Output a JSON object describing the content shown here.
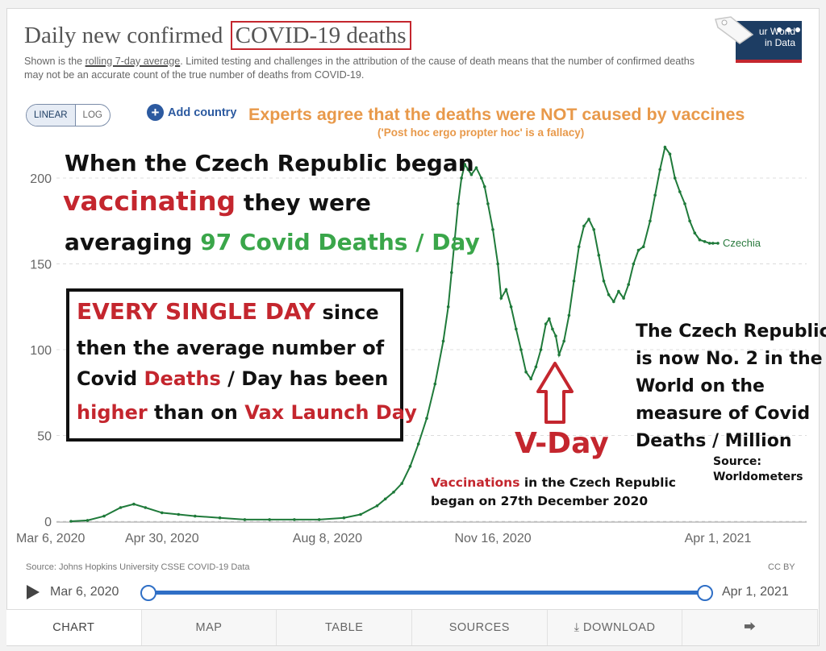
{
  "header": {
    "title_prefix": "Daily new confirmed ",
    "title_highlight": "COVID-19 deaths",
    "subtitle_pre": "Shown is the ",
    "subtitle_link": "rolling 7-day average",
    "subtitle_post": ". Limited testing and challenges in the attribution of the cause of death means that the number of confirmed deaths may not be an accurate count of the true number of deaths from COVID-19.",
    "logo_line1": "ur World",
    "logo_line2": "in Data"
  },
  "controls": {
    "linear_label": "LINEAR",
    "log_label": "LOG",
    "add_country_label": "Add country"
  },
  "annotations": {
    "experts": "Experts agree that the deaths were NOT caused by vaccines",
    "fallacy": "('Post hoc ergo propter hoc' is a fallacy)",
    "czech_l1": "When the Czech Republic began",
    "czech_l2a": "vaccinating",
    "czech_l2b": " they were",
    "czech_l3a": "averaging ",
    "czech_l3b": "97 Covid Deaths / Day",
    "box_l1a": "EVERY SINGLE DAY",
    "box_l1b": " since",
    "box_l2": "then the average number of",
    "box_l3a": "Covid ",
    "box_l3b": "Deaths",
    "box_l3c": " / Day has been",
    "box_l4a": "higher",
    "box_l4b": " than on ",
    "box_l4c": "Vax Launch Day",
    "vday": "V-Day",
    "rank_l1": "The Czech Republic",
    "rank_l2": "is now No. 2 in the",
    "rank_l3": "World on the",
    "rank_l4": "measure of Covid",
    "rank_l5": "Deaths / Million",
    "source_ann_l1": "Source:",
    "source_ann_l2": "Worldometers",
    "vacc_l1a": "Vaccinations",
    "vacc_l1b": " in the Czech Republic",
    "vacc_l2": "began on 27th December 2020"
  },
  "footer": {
    "source": "Source: Johns Hopkins University CSSE COVID-19 Data",
    "license": "CC BY",
    "timeline_start": "Mar 6, 2020",
    "timeline_end": "Apr 1, 2021"
  },
  "tabs": [
    "CHART",
    "MAP",
    "TABLE",
    "SOURCES",
    "DOWNLOAD",
    ""
  ],
  "colors": {
    "line": "#1f7a3a",
    "accent_red": "#c4262e",
    "accent_blue": "#2c5aa0",
    "orange": "#e8994a"
  },
  "chart_data": {
    "type": "line",
    "title": "Daily new confirmed COVID-19 deaths",
    "x_tick_labels": [
      "Mar 6, 2020",
      "Apr 30, 2020",
      "Aug 8, 2020",
      "Nov 16, 2020",
      "Apr 1, 2021"
    ],
    "x_tick_days": [
      0,
      55,
      155,
      255,
      391
    ],
    "y_ticks": [
      0,
      50,
      100,
      150,
      200
    ],
    "ylim": [
      0,
      215
    ],
    "xlim_days": [
      0,
      391
    ],
    "grid": "horizontal dashed",
    "series": [
      {
        "name": "Czechia",
        "x_days": [
          0,
          10,
          20,
          30,
          38,
          45,
          55,
          65,
          75,
          90,
          105,
          120,
          135,
          150,
          165,
          175,
          185,
          190,
          195,
          200,
          205,
          210,
          215,
          220,
          225,
          228,
          230,
          232,
          234,
          236,
          238,
          240,
          242,
          245,
          248,
          250,
          252,
          255,
          258,
          260,
          263,
          266,
          269,
          272,
          275,
          278,
          281,
          284,
          287,
          289,
          291,
          293,
          295,
          298,
          301,
          304,
          307,
          310,
          313,
          316,
          319,
          322,
          325,
          328,
          331,
          334,
          337,
          340,
          343,
          346,
          350,
          353,
          356,
          359,
          362,
          365,
          368,
          371,
          374,
          377,
          380,
          383,
          386,
          388,
          391
        ],
        "values": [
          0,
          0.5,
          3,
          8,
          10,
          8,
          5,
          4,
          3,
          2,
          1,
          1,
          1,
          1,
          2,
          4,
          9,
          13,
          17,
          22,
          32,
          45,
          60,
          80,
          105,
          125,
          145,
          165,
          185,
          200,
          208,
          205,
          202,
          206,
          200,
          195,
          185,
          170,
          150,
          130,
          135,
          125,
          112,
          100,
          87,
          83,
          90,
          100,
          115,
          118,
          112,
          108,
          97,
          105,
          120,
          140,
          160,
          172,
          176,
          170,
          155,
          140,
          132,
          128,
          134,
          130,
          138,
          150,
          158,
          160,
          175,
          190,
          205,
          218,
          214,
          200,
          192,
          185,
          175,
          168,
          164,
          163,
          162,
          162,
          162
        ]
      }
    ]
  }
}
